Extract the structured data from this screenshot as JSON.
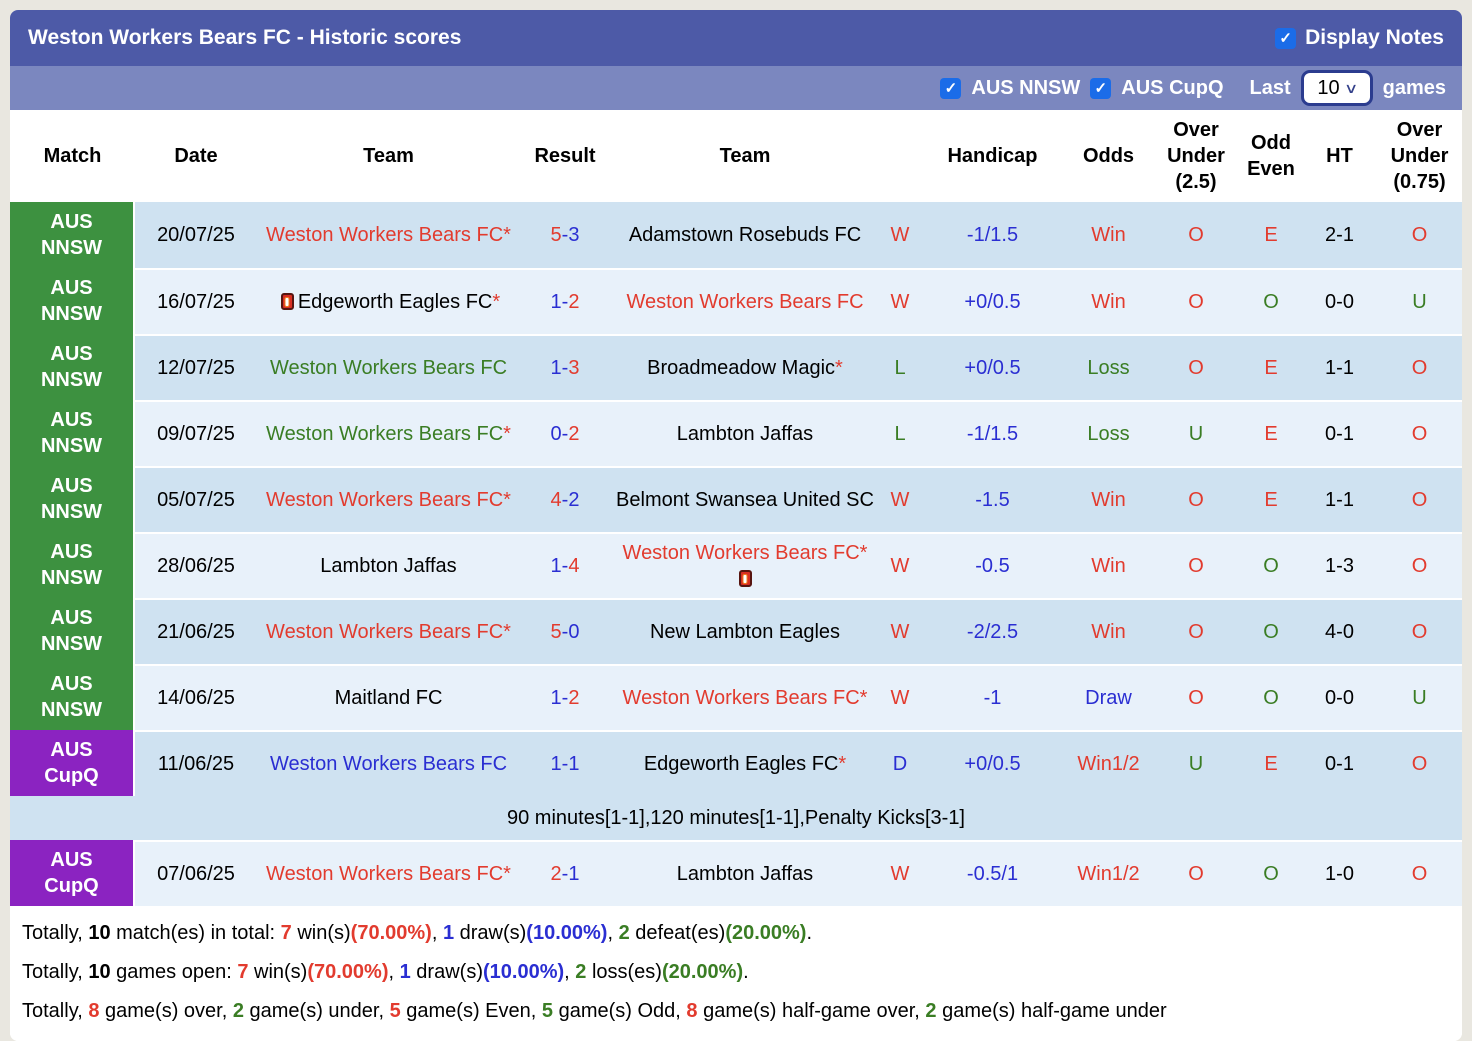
{
  "title": "Weston Workers Bears FC - Historic scores",
  "display_notes_label": "Display Notes",
  "filters": {
    "league1": "AUS NNSW",
    "league2": "AUS CupQ",
    "last_label": "Last",
    "last_value": "10",
    "games_label": "games",
    "league1_checked": true,
    "league2_checked": true,
    "display_notes_checked": true
  },
  "glyphs": {
    "star": "*",
    "check": "✓",
    "chevron": "∨",
    "dash": "-"
  },
  "colors": {
    "page-bg": "#e9e7e0",
    "bar-dark": "#4d5aa7",
    "bar-light": "#7b87bf",
    "row-dark": "#cfe2f1",
    "row-light": "#e8f1fa",
    "badge-green": "#3d9140",
    "badge-purple": "#8b23c1",
    "red": "#e23b2e",
    "blue": "#2a2ed2",
    "green": "#3a7d24",
    "check-blue": "#1b6ce8"
  },
  "header": {
    "match": "Match",
    "date": "Date",
    "team_home": "Team",
    "result": "Result",
    "team_away": "Team",
    "handicap_result": "",
    "handicap": "Handicap",
    "odds": "Odds",
    "over_under_25": "Over\nUnder\n(2.5)",
    "odd_even": "Odd\nEven",
    "ht": "HT",
    "over_under_075": "Over\nUnder\n(0.75)"
  },
  "rows": [
    {
      "league": [
        "AUS",
        "NNSW"
      ],
      "league_color": "green",
      "date": "20/07/25",
      "home": {
        "name": "Weston Workers Bears FC",
        "color": "red",
        "star": true,
        "card": null
      },
      "score": {
        "home": "5",
        "away": "3",
        "home_color": "red",
        "away_color": "blue"
      },
      "away": {
        "name": "Adamstown Rosebuds FC",
        "color": "black",
        "star": false,
        "card": null
      },
      "wl": {
        "text": "W",
        "color": "red"
      },
      "handicap": "-1/1.5",
      "odds": {
        "text": "Win",
        "color": "red"
      },
      "ou25": {
        "text": "O",
        "color": "red"
      },
      "oddeven": {
        "text": "E",
        "color": "red"
      },
      "ht": "2-1",
      "ou075": {
        "text": "O",
        "color": "red"
      },
      "note": null
    },
    {
      "league": [
        "AUS",
        "NNSW"
      ],
      "league_color": "green",
      "date": "16/07/25",
      "home": {
        "name": "Edgeworth Eagles FC",
        "color": "black",
        "star": true,
        "card": "before"
      },
      "score": {
        "home": "1",
        "away": "2",
        "home_color": "blue",
        "away_color": "red"
      },
      "away": {
        "name": "Weston Workers Bears FC",
        "color": "red",
        "star": false,
        "card": null
      },
      "wl": {
        "text": "W",
        "color": "red"
      },
      "handicap": "+0/0.5",
      "odds": {
        "text": "Win",
        "color": "red"
      },
      "ou25": {
        "text": "O",
        "color": "red"
      },
      "oddeven": {
        "text": "O",
        "color": "green"
      },
      "ht": "0-0",
      "ou075": {
        "text": "U",
        "color": "green"
      },
      "note": null
    },
    {
      "league": [
        "AUS",
        "NNSW"
      ],
      "league_color": "green",
      "date": "12/07/25",
      "home": {
        "name": "Weston Workers Bears FC",
        "color": "green",
        "star": false,
        "card": null
      },
      "score": {
        "home": "1",
        "away": "3",
        "home_color": "blue",
        "away_color": "red"
      },
      "away": {
        "name": "Broadmeadow Magic",
        "color": "black",
        "star": true,
        "card": null
      },
      "wl": {
        "text": "L",
        "color": "green"
      },
      "handicap": "+0/0.5",
      "odds": {
        "text": "Loss",
        "color": "green"
      },
      "ou25": {
        "text": "O",
        "color": "red"
      },
      "oddeven": {
        "text": "E",
        "color": "red"
      },
      "ht": "1-1",
      "ou075": {
        "text": "O",
        "color": "red"
      },
      "note": null
    },
    {
      "league": [
        "AUS",
        "NNSW"
      ],
      "league_color": "green",
      "date": "09/07/25",
      "home": {
        "name": "Weston Workers Bears FC",
        "color": "green",
        "star": true,
        "card": null
      },
      "score": {
        "home": "0",
        "away": "2",
        "home_color": "blue",
        "away_color": "red"
      },
      "away": {
        "name": "Lambton Jaffas",
        "color": "black",
        "star": false,
        "card": null
      },
      "wl": {
        "text": "L",
        "color": "green"
      },
      "handicap": "-1/1.5",
      "odds": {
        "text": "Loss",
        "color": "green"
      },
      "ou25": {
        "text": "U",
        "color": "green"
      },
      "oddeven": {
        "text": "E",
        "color": "red"
      },
      "ht": "0-1",
      "ou075": {
        "text": "O",
        "color": "red"
      },
      "note": null
    },
    {
      "league": [
        "AUS",
        "NNSW"
      ],
      "league_color": "green",
      "date": "05/07/25",
      "home": {
        "name": "Weston Workers Bears FC",
        "color": "red",
        "star": true,
        "card": null
      },
      "score": {
        "home": "4",
        "away": "2",
        "home_color": "red",
        "away_color": "blue"
      },
      "away": {
        "name": "Belmont Swansea United SC",
        "color": "black",
        "star": false,
        "card": null
      },
      "wl": {
        "text": "W",
        "color": "red"
      },
      "handicap": "-1.5",
      "odds": {
        "text": "Win",
        "color": "red"
      },
      "ou25": {
        "text": "O",
        "color": "red"
      },
      "oddeven": {
        "text": "E",
        "color": "red"
      },
      "ht": "1-1",
      "ou075": {
        "text": "O",
        "color": "red"
      },
      "note": null
    },
    {
      "league": [
        "AUS",
        "NNSW"
      ],
      "league_color": "green",
      "date": "28/06/25",
      "home": {
        "name": "Lambton Jaffas",
        "color": "black",
        "star": false,
        "card": null
      },
      "score": {
        "home": "1",
        "away": "4",
        "home_color": "blue",
        "away_color": "red"
      },
      "away": {
        "name": "Weston Workers Bears FC",
        "color": "red",
        "star": true,
        "card": "after"
      },
      "wl": {
        "text": "W",
        "color": "red"
      },
      "handicap": "-0.5",
      "odds": {
        "text": "Win",
        "color": "red"
      },
      "ou25": {
        "text": "O",
        "color": "red"
      },
      "oddeven": {
        "text": "O",
        "color": "green"
      },
      "ht": "1-3",
      "ou075": {
        "text": "O",
        "color": "red"
      },
      "note": null
    },
    {
      "league": [
        "AUS",
        "NNSW"
      ],
      "league_color": "green",
      "date": "21/06/25",
      "home": {
        "name": "Weston Workers Bears FC",
        "color": "red",
        "star": true,
        "card": null
      },
      "score": {
        "home": "5",
        "away": "0",
        "home_color": "red",
        "away_color": "blue"
      },
      "away": {
        "name": "New Lambton Eagles",
        "color": "black",
        "star": false,
        "card": null
      },
      "wl": {
        "text": "W",
        "color": "red"
      },
      "handicap": "-2/2.5",
      "odds": {
        "text": "Win",
        "color": "red"
      },
      "ou25": {
        "text": "O",
        "color": "red"
      },
      "oddeven": {
        "text": "O",
        "color": "green"
      },
      "ht": "4-0",
      "ou075": {
        "text": "O",
        "color": "red"
      },
      "note": null
    },
    {
      "league": [
        "AUS",
        "NNSW"
      ],
      "league_color": "green",
      "date": "14/06/25",
      "home": {
        "name": "Maitland FC",
        "color": "black",
        "star": false,
        "card": null
      },
      "score": {
        "home": "1",
        "away": "2",
        "home_color": "blue",
        "away_color": "red"
      },
      "away": {
        "name": "Weston Workers Bears FC",
        "color": "red",
        "star": true,
        "card": null
      },
      "wl": {
        "text": "W",
        "color": "red"
      },
      "handicap": "-1",
      "odds": {
        "text": "Draw",
        "color": "blue"
      },
      "ou25": {
        "text": "O",
        "color": "red"
      },
      "oddeven": {
        "text": "O",
        "color": "green"
      },
      "ht": "0-0",
      "ou075": {
        "text": "U",
        "color": "green"
      },
      "note": null
    },
    {
      "league": [
        "AUS",
        "CupQ"
      ],
      "league_color": "purple",
      "date": "11/06/25",
      "home": {
        "name": "Weston Workers Bears FC",
        "color": "blue",
        "star": false,
        "card": null
      },
      "score": {
        "home": "1",
        "away": "1",
        "home_color": "blue",
        "away_color": "blue"
      },
      "away": {
        "name": "Edgeworth Eagles FC",
        "color": "black",
        "star": true,
        "card": null
      },
      "wl": {
        "text": "D",
        "color": "blue"
      },
      "handicap": "+0/0.5",
      "odds": {
        "text": "Win1/2",
        "color": "red"
      },
      "ou25": {
        "text": "U",
        "color": "green"
      },
      "oddeven": {
        "text": "E",
        "color": "red"
      },
      "ht": "0-1",
      "ou075": {
        "text": "O",
        "color": "red"
      },
      "note": "90 minutes[1-1],120 minutes[1-1],Penalty Kicks[3-1]"
    },
    {
      "league": [
        "AUS",
        "CupQ"
      ],
      "league_color": "purple",
      "date": "07/06/25",
      "home": {
        "name": "Weston Workers Bears FC",
        "color": "red",
        "star": true,
        "card": null
      },
      "score": {
        "home": "2",
        "away": "1",
        "home_color": "red",
        "away_color": "blue"
      },
      "away": {
        "name": "Lambton Jaffas",
        "color": "black",
        "star": false,
        "card": null
      },
      "wl": {
        "text": "W",
        "color": "red"
      },
      "handicap": "-0.5/1",
      "odds": {
        "text": "Win1/2",
        "color": "red"
      },
      "ou25": {
        "text": "O",
        "color": "red"
      },
      "oddeven": {
        "text": "O",
        "color": "green"
      },
      "ht": "1-0",
      "ou075": {
        "text": "O",
        "color": "red"
      },
      "note": null
    }
  ],
  "summary": [
    [
      {
        "t": "Totally, ",
        "c": "black",
        "b": false
      },
      {
        "t": "10",
        "c": "black",
        "b": true
      },
      {
        "t": " match(es) in total: ",
        "c": "black",
        "b": false
      },
      {
        "t": "7",
        "c": "red",
        "b": true
      },
      {
        "t": " win(s)",
        "c": "black",
        "b": false
      },
      {
        "t": "(70.00%)",
        "c": "red",
        "b": true
      },
      {
        "t": ", ",
        "c": "black",
        "b": false
      },
      {
        "t": "1",
        "c": "blue",
        "b": true
      },
      {
        "t": " draw(s)",
        "c": "black",
        "b": false
      },
      {
        "t": "(10.00%)",
        "c": "blue",
        "b": true
      },
      {
        "t": ", ",
        "c": "black",
        "b": false
      },
      {
        "t": "2",
        "c": "green",
        "b": true
      },
      {
        "t": " defeat(es)",
        "c": "black",
        "b": false
      },
      {
        "t": "(20.00%)",
        "c": "green",
        "b": true
      },
      {
        "t": ".",
        "c": "black",
        "b": false
      }
    ],
    [
      {
        "t": "Totally, ",
        "c": "black",
        "b": false
      },
      {
        "t": "10",
        "c": "black",
        "b": true
      },
      {
        "t": " games open: ",
        "c": "black",
        "b": false
      },
      {
        "t": "7",
        "c": "red",
        "b": true
      },
      {
        "t": " win(s)",
        "c": "black",
        "b": false
      },
      {
        "t": "(70.00%)",
        "c": "red",
        "b": true
      },
      {
        "t": ", ",
        "c": "black",
        "b": false
      },
      {
        "t": "1",
        "c": "blue",
        "b": true
      },
      {
        "t": " draw(s)",
        "c": "black",
        "b": false
      },
      {
        "t": "(10.00%)",
        "c": "blue",
        "b": true
      },
      {
        "t": ", ",
        "c": "black",
        "b": false
      },
      {
        "t": "2",
        "c": "green",
        "b": true
      },
      {
        "t": " loss(es)",
        "c": "black",
        "b": false
      },
      {
        "t": "(20.00%)",
        "c": "green",
        "b": true
      },
      {
        "t": ".",
        "c": "black",
        "b": false
      }
    ],
    [
      {
        "t": "Totally, ",
        "c": "black",
        "b": false
      },
      {
        "t": "8",
        "c": "red",
        "b": true
      },
      {
        "t": " game(s) over, ",
        "c": "black",
        "b": false
      },
      {
        "t": "2",
        "c": "green",
        "b": true
      },
      {
        "t": " game(s) under, ",
        "c": "black",
        "b": false
      },
      {
        "t": "5",
        "c": "red",
        "b": true
      },
      {
        "t": " game(s) Even, ",
        "c": "black",
        "b": false
      },
      {
        "t": "5",
        "c": "green",
        "b": true
      },
      {
        "t": " game(s) Odd, ",
        "c": "black",
        "b": false
      },
      {
        "t": "8",
        "c": "red",
        "b": true
      },
      {
        "t": " game(s) half-game over, ",
        "c": "black",
        "b": false
      },
      {
        "t": "2",
        "c": "green",
        "b": true
      },
      {
        "t": " game(s) half-game under",
        "c": "black",
        "b": false
      }
    ]
  ]
}
